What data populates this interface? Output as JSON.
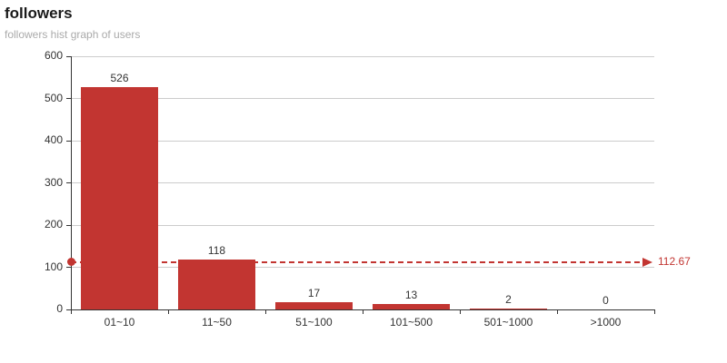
{
  "header": {
    "title": "followers",
    "subtitle": "followers hist graph of users"
  },
  "chart_data": {
    "type": "bar",
    "title": "followers",
    "subtitle": "followers hist graph of users",
    "categories": [
      "01~10",
      "11~50",
      "51~100",
      "101~500",
      "501~1000",
      ">1000"
    ],
    "values": [
      526,
      118,
      17,
      13,
      2,
      0
    ],
    "value_labels": [
      "526",
      "118",
      "17",
      "13",
      "2",
      "0"
    ],
    "xlabel": "",
    "ylabel": "",
    "ylim": [
      0,
      600
    ],
    "y_ticks": [
      0,
      100,
      200,
      300,
      400,
      500,
      600
    ],
    "grid": true,
    "legend_position": "none",
    "bar_color": "#c23531",
    "grid_color": "#cccccc",
    "axis_color": "#333333",
    "text_color": "#333333",
    "subtitle_color": "#aaaaaa",
    "mark_line": {
      "type": "average",
      "value": 112.67,
      "label": "112.67",
      "color": "#c23531",
      "style": "dashed"
    }
  }
}
